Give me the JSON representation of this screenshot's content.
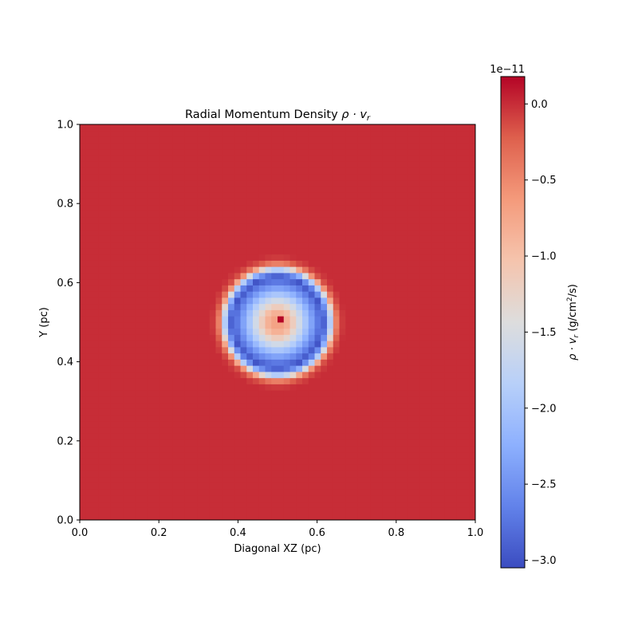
{
  "chart_data": {
    "type": "heatmap",
    "title_prefix": "Radial Momentum Density ",
    "title_math": "ρ · v",
    "title_math_sub": "r",
    "xlabel": "Diagonal XZ (pc)",
    "ylabel": "Y (pc)",
    "xlim": [
      0.0,
      1.0
    ],
    "ylim": [
      0.0,
      1.0
    ],
    "x_ticks": [
      "0.0",
      "0.2",
      "0.4",
      "0.6",
      "0.8",
      "1.0"
    ],
    "y_ticks": [
      "0.0",
      "0.2",
      "0.4",
      "0.6",
      "0.8",
      "1.0"
    ],
    "grid_size": 64,
    "colormap": "coolwarm",
    "colorbar": {
      "offset_text": "1e−11",
      "label_math": "ρ · v",
      "label_sub": "r",
      "label_rest": " (g/cm",
      "label_sup": "2",
      "label_end": "/s)",
      "vmin": -3.05,
      "vmax": 0.18,
      "ticks": [
        {
          "value": 0.0,
          "label": "0.0"
        },
        {
          "value": -0.5,
          "label": "−0.5"
        },
        {
          "value": -1.0,
          "label": "−1.0"
        },
        {
          "value": -1.5,
          "label": "−1.5"
        },
        {
          "value": -2.0,
          "label": "−2.0"
        },
        {
          "value": -2.5,
          "label": "−2.5"
        },
        {
          "value": -3.0,
          "label": "−3.0"
        }
      ]
    },
    "field": {
      "center": [
        0.5,
        0.5
      ],
      "background_value": 0.0,
      "center_value": 0.18,
      "radial_profile": [
        {
          "r": 0.0,
          "value": -0.6
        },
        {
          "r": 0.03,
          "value": -0.9
        },
        {
          "r": 0.06,
          "value": -1.7
        },
        {
          "r": 0.09,
          "value": -2.45
        },
        {
          "r": 0.115,
          "value": -3.0
        },
        {
          "r": 0.13,
          "value": -2.2
        },
        {
          "r": 0.145,
          "value": -0.6
        },
        {
          "r": 0.155,
          "value": -0.15
        },
        {
          "r": 0.17,
          "value": 0.0
        }
      ]
    }
  }
}
